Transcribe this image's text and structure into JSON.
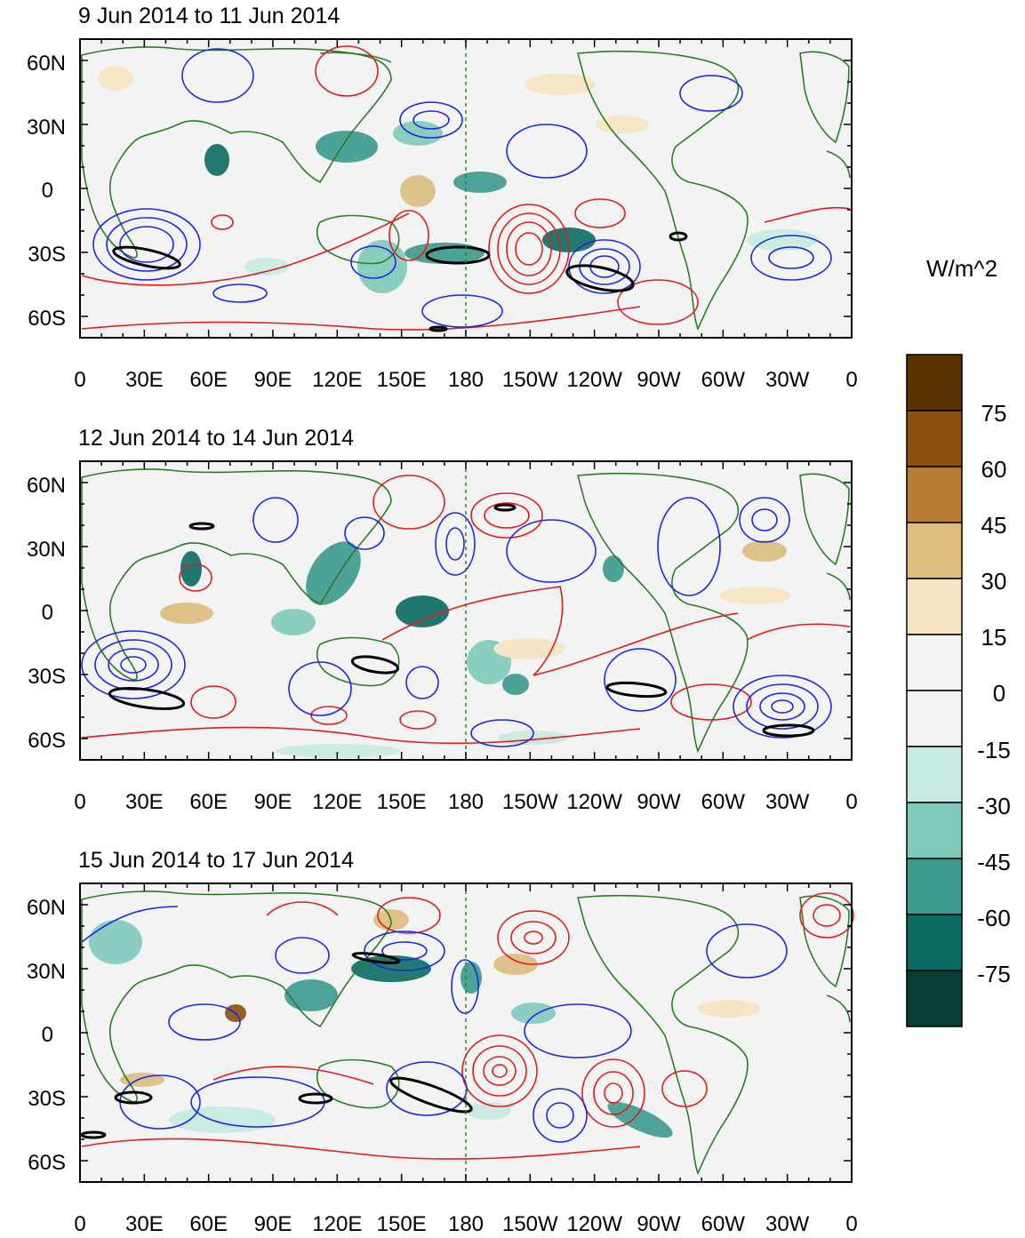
{
  "panels": [
    {
      "title": "9 Jun 2014 to 11 Jun 2014"
    },
    {
      "title": "12 Jun 2014 to 14 Jun 2014"
    },
    {
      "title": "15 Jun 2014 to 17 Jun 2014"
    }
  ],
  "axes": {
    "x_ticks": [
      "0",
      "30E",
      "60E",
      "90E",
      "120E",
      "150E",
      "180",
      "150W",
      "120W",
      "90W",
      "60W",
      "30W",
      "0"
    ],
    "y_ticks": [
      "60N",
      "30N",
      "0",
      "30S",
      "60S"
    ],
    "lon_range": [
      0,
      360
    ],
    "lat_range": [
      -70,
      70
    ]
  },
  "colorbar": {
    "units": "W/m^2",
    "labels": [
      "75",
      "60",
      "45",
      "30",
      "15",
      "0",
      "-15",
      "-30",
      "-45",
      "-60",
      "-75"
    ],
    "colors": [
      "#5a3304",
      "#8b5010",
      "#b87d33",
      "#dcbd7e",
      "#f5e4c1",
      "#f3f3f3",
      "#f3f3f3",
      "#c6eae1",
      "#7fcabb",
      "#3a9a8e",
      "#0a6b63",
      "#063d35"
    ]
  },
  "map_colors": {
    "ocean": "#f3f3f3",
    "coast": "#2a7d24",
    "positive_contour": "#e51b1b",
    "negative_contour": "#1a28e0",
    "significance": "#000000"
  }
}
